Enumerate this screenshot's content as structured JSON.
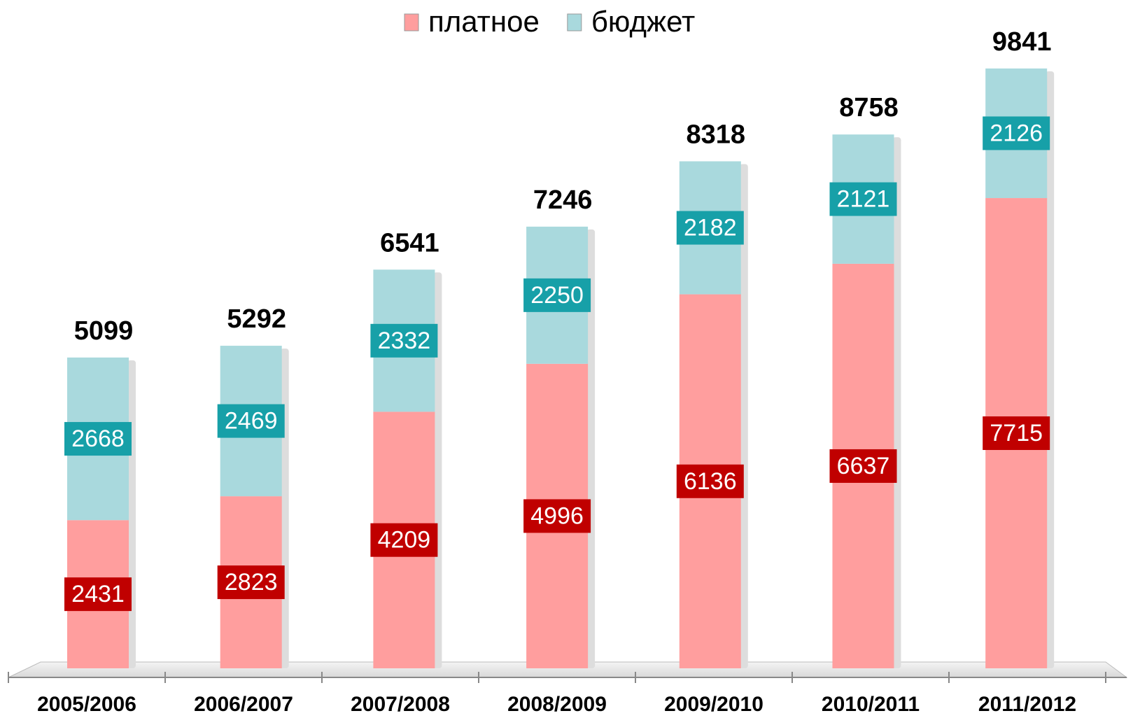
{
  "chart_data": {
    "type": "stacked_bar",
    "categories": [
      "2005/2006",
      "2006/2007",
      "2007/2008",
      "2008/2009",
      "2009/2010",
      "2010/2011",
      "2011/2012"
    ],
    "series": [
      {
        "name": "платное",
        "color": "#ff9e9e",
        "label_color": "#c00000",
        "values": [
          2431,
          2823,
          4209,
          4996,
          6136,
          6637,
          7715
        ]
      },
      {
        "name": "бюджет",
        "color": "#a9d9dd",
        "label_color": "#17a0a8",
        "values": [
          2668,
          2469,
          2332,
          2250,
          2182,
          2121,
          2126
        ]
      }
    ],
    "totals": [
      5099,
      5292,
      6541,
      7246,
      8318,
      8758,
      9841
    ],
    "ylim": [
      0,
      10000
    ],
    "legend": "top"
  }
}
